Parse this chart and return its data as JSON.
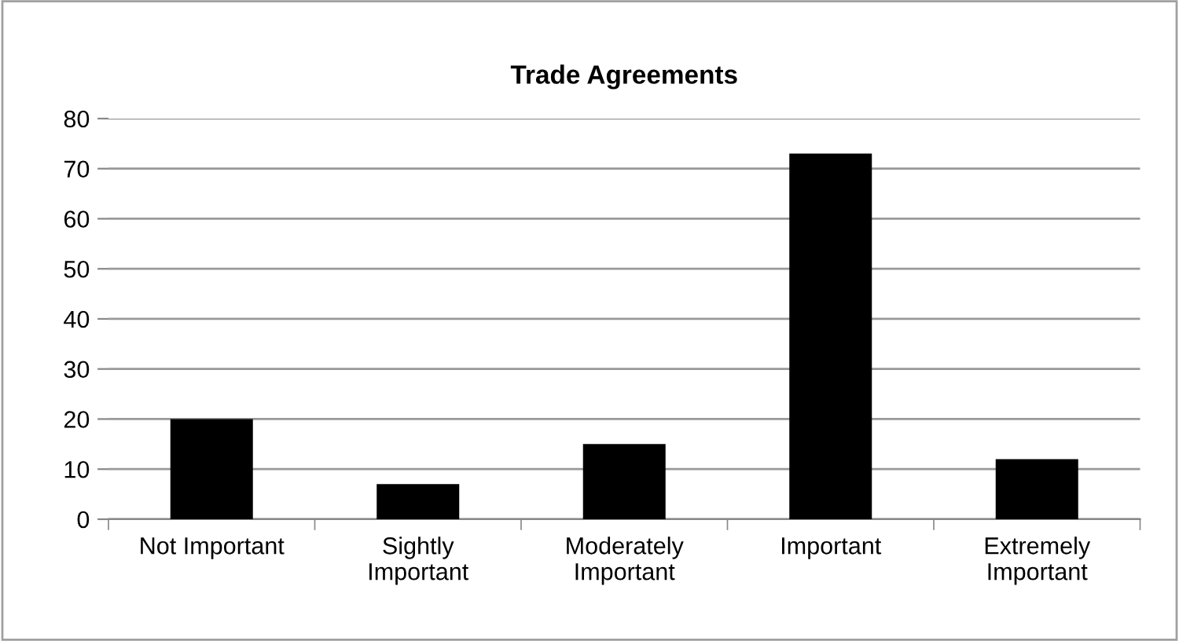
{
  "chart_data": {
    "type": "bar",
    "title": "Trade Agreements",
    "categories": [
      "Not Important",
      "Sightly\nImportant",
      "Moderately\nImportant",
      "Important",
      "Extremely\nImportant"
    ],
    "values": [
      20,
      7,
      15,
      73,
      12
    ],
    "color": "#000000",
    "ylim": [
      0,
      80
    ],
    "yticks": [
      0,
      10,
      20,
      30,
      40,
      50,
      60,
      70,
      80
    ],
    "grid": "y",
    "legend": false
  }
}
